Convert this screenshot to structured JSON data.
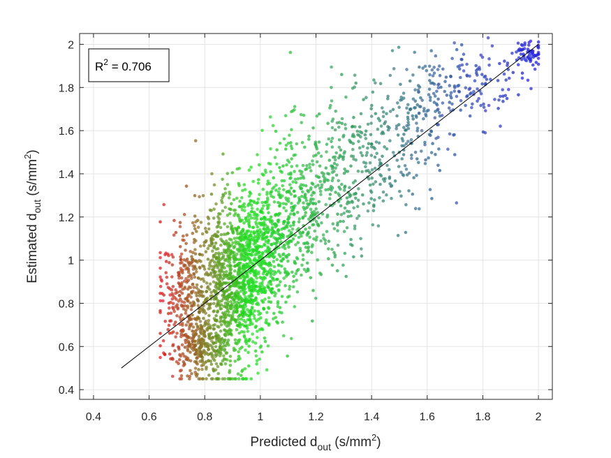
{
  "chart_data": {
    "type": "scatter",
    "title": "",
    "xlabel": {
      "main": "Predicted d",
      "sub": "out",
      "unit_pre": " (s/mm",
      "unit_sup": "2",
      "unit_post": ")"
    },
    "ylabel": {
      "main": "Estimated d",
      "sub": "out",
      "unit_pre": " (s/mm",
      "unit_sup": "2",
      "unit_post": ")"
    },
    "xlim": [
      0.35,
      2.05
    ],
    "ylim": [
      0.355,
      2.05
    ],
    "xticks": [
      0.4,
      0.6,
      0.8,
      1.0,
      1.2,
      1.4,
      1.6,
      1.8,
      2.0
    ],
    "xtick_labels": [
      "0.4",
      "0.6",
      "0.8",
      "1",
      "1.2",
      "1.4",
      "1.6",
      "1.8",
      "2"
    ],
    "yticks": [
      0.4,
      0.6,
      0.8,
      1.0,
      1.2,
      1.4,
      1.6,
      1.8,
      2.0
    ],
    "ytick_labels": [
      "0.4",
      "0.6",
      "0.8",
      "1",
      "1.2",
      "1.4",
      "1.6",
      "1.8",
      "2"
    ],
    "grid": true,
    "annotation": {
      "base": "R",
      "sup": "2",
      "rest": " = 0.706",
      "position": "top-left"
    },
    "identity_line": {
      "x": [
        0.5,
        2.0
      ],
      "y": [
        0.5,
        2.0
      ],
      "color": "#000000"
    },
    "color_scale": {
      "low": "#e02020",
      "mid": "#20e020",
      "high": "#2020e0",
      "note_mid_at": 1.0
    },
    "point_clusters": [
      {
        "cx": 0.73,
        "cy": 0.85,
        "sx": 0.05,
        "sy": 0.16,
        "n": 300
      },
      {
        "cx": 0.78,
        "cy": 0.6,
        "sx": 0.06,
        "sy": 0.06,
        "n": 250
      },
      {
        "cx": 0.86,
        "cy": 0.85,
        "sx": 0.06,
        "sy": 0.2,
        "n": 450
      },
      {
        "cx": 0.94,
        "cy": 0.92,
        "sx": 0.05,
        "sy": 0.2,
        "n": 650
      },
      {
        "cx": 1.02,
        "cy": 1.05,
        "sx": 0.07,
        "sy": 0.16,
        "n": 450
      },
      {
        "cx": 1.15,
        "cy": 1.25,
        "sx": 0.08,
        "sy": 0.17,
        "n": 320
      },
      {
        "cx": 1.32,
        "cy": 1.42,
        "sx": 0.09,
        "sy": 0.17,
        "n": 260
      },
      {
        "cx": 1.52,
        "cy": 1.6,
        "sx": 0.09,
        "sy": 0.15,
        "n": 190
      },
      {
        "cx": 1.75,
        "cy": 1.82,
        "sx": 0.1,
        "sy": 0.1,
        "n": 150
      },
      {
        "cx": 1.97,
        "cy": 1.96,
        "sx": 0.025,
        "sy": 0.03,
        "n": 60
      }
    ],
    "point_radius": 2.3,
    "point_opacity": 0.75
  }
}
